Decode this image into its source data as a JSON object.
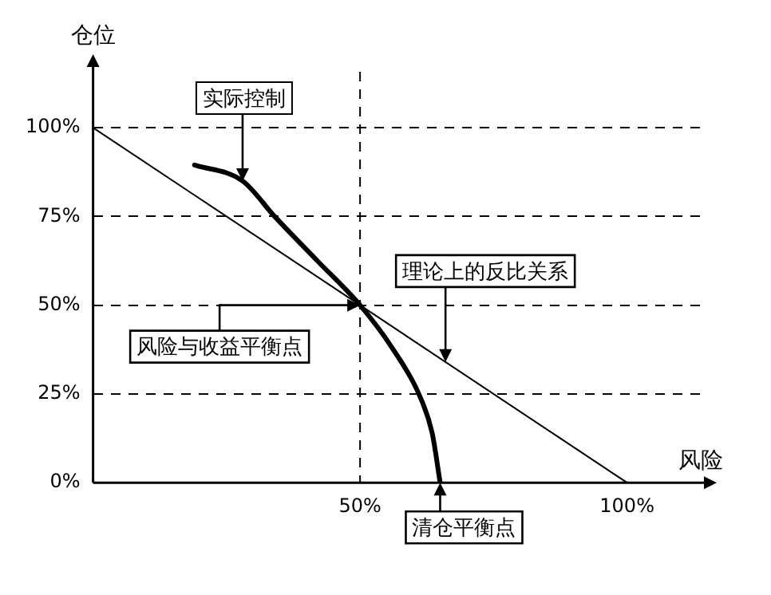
{
  "chart_data": {
    "type": "line",
    "xlabel": "风险",
    "ylabel": "仓位",
    "xlim": [
      0,
      115
    ],
    "ylim": [
      0,
      118
    ],
    "xticks": [
      {
        "value": 50,
        "label": "50%"
      },
      {
        "value": 100,
        "label": "100%"
      }
    ],
    "yticks": [
      {
        "value": 0,
        "label": "0%"
      },
      {
        "value": 25,
        "label": "25%"
      },
      {
        "value": 50,
        "label": "50%"
      },
      {
        "value": 75,
        "label": "75%"
      },
      {
        "value": 100,
        "label": "100%"
      }
    ],
    "grid": "y",
    "line_style": "solid",
    "marker": "none",
    "legend": false,
    "ref_lines": [
      {
        "axis": "x",
        "value": 50,
        "line_style": "dashed",
        "color": "#000000"
      }
    ],
    "series": [
      {
        "color": "#000000",
        "x": [
          0,
          100
        ],
        "values": [
          100,
          0
        ]
      },
      {
        "color": "#000000",
        "x": [
          19,
          28,
          34,
          42,
          50,
          56,
          61,
          63.5,
          65
        ],
        "values": [
          89.5,
          85,
          75,
          62.5,
          50,
          38,
          25,
          14,
          0
        ]
      }
    ],
    "annotations": [
      {
        "text": "实际控制",
        "x": 28,
        "y": 85
      },
      {
        "text": "理论上的反比关系",
        "x": 66,
        "y": 34
      },
      {
        "text": "风险与收益平衡点",
        "x": 50,
        "y": 50
      },
      {
        "text": "清仓平衡点",
        "x": 65,
        "y": 0
      }
    ]
  }
}
